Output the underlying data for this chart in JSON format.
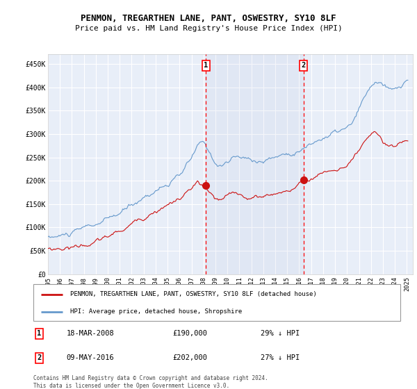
{
  "title": "PENMON, TREGARTHEN LANE, PANT, OSWESTRY, SY10 8LF",
  "subtitle": "Price paid vs. HM Land Registry's House Price Index (HPI)",
  "background_color": "#ffffff",
  "plot_bg_color": "#e8eef8",
  "grid_color": "#ffffff",
  "hpi_color": "#6699cc",
  "red_color": "#cc1111",
  "legend_label_red": "PENMON, TREGARTHEN LANE, PANT, OSWESTRY, SY10 8LF (detached house)",
  "legend_label_blue": "HPI: Average price, detached house, Shropshire",
  "footer": "Contains HM Land Registry data © Crown copyright and database right 2024.\nThis data is licensed under the Open Government Licence v3.0.",
  "marker1": {
    "label": "1",
    "date": "18-MAR-2008",
    "price": "£190,000",
    "pct": "29% ↓ HPI"
  },
  "marker2": {
    "label": "2",
    "date": "09-MAY-2016",
    "price": "£202,000",
    "pct": "27% ↓ HPI"
  },
  "marker1_x": 2008.21,
  "marker2_x": 2016.36,
  "ylim": [
    0,
    470000
  ],
  "xlim": [
    1995,
    2025.5
  ],
  "yticks": [
    0,
    50000,
    100000,
    150000,
    200000,
    250000,
    300000,
    350000,
    400000,
    450000
  ],
  "ytick_labels": [
    "£0",
    "£50K",
    "£100K",
    "£150K",
    "£200K",
    "£250K",
    "£300K",
    "£350K",
    "£400K",
    "£450K"
  ],
  "xtick_years": [
    1995,
    1996,
    1997,
    1998,
    1999,
    2000,
    2001,
    2002,
    2003,
    2004,
    2005,
    2006,
    2007,
    2008,
    2009,
    2010,
    2011,
    2012,
    2013,
    2014,
    2015,
    2016,
    2017,
    2018,
    2019,
    2020,
    2021,
    2022,
    2023,
    2024,
    2025
  ],
  "marker1_dot_y": 190000,
  "marker2_dot_y": 202000
}
